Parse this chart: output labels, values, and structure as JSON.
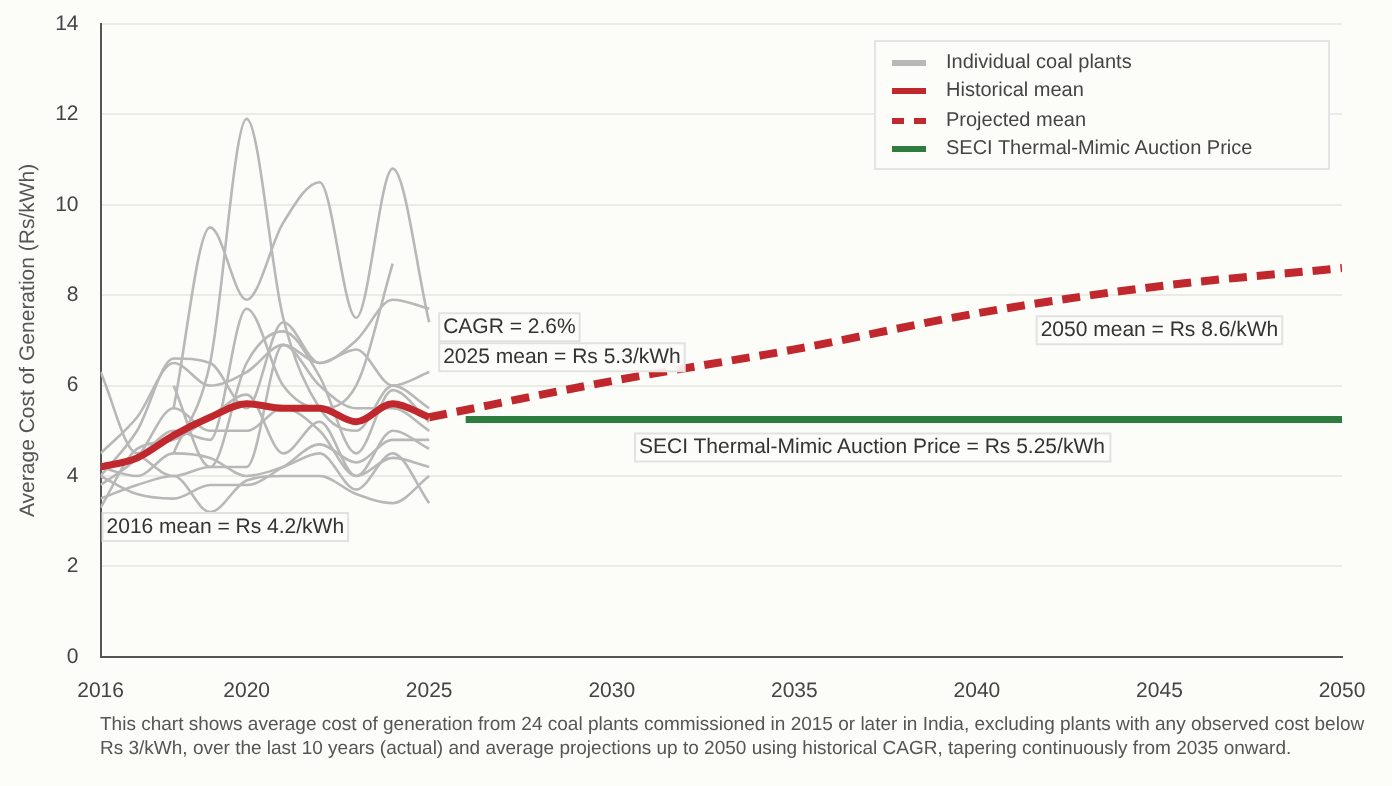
{
  "chart_data": {
    "type": "line",
    "ylabel": "Average Cost of Generation (Rs/kWh)",
    "x": [
      2016,
      2017,
      2018,
      2019,
      2020,
      2021,
      2022,
      2023,
      2024,
      2025
    ],
    "xlim": [
      2016,
      2050
    ],
    "xticks": [
      2016,
      2020,
      2025,
      2030,
      2035,
      2040,
      2045,
      2050
    ],
    "ylim": [
      0,
      14
    ],
    "yticks": [
      0,
      2,
      4,
      6,
      8,
      10,
      12,
      14
    ],
    "grid": "y",
    "legend": "top right",
    "marker": "none",
    "series": [
      {
        "name": "Individual coal plants",
        "color": "#b8b8b8",
        "values": [
          null,
          null,
          5.5,
          9.5,
          7.9,
          9.6,
          10.5,
          7.5,
          10.8,
          7.4
        ]
      },
      {
        "color": "#b8b8b8",
        "values": [
          null,
          null,
          4.5,
          6.5,
          11.9,
          7.5,
          5.5,
          5.0,
          6.0,
          5.5
        ]
      },
      {
        "color": "#b8b8b8",
        "values": [
          6.3,
          4.5,
          5.0,
          4.8,
          7.7,
          6.0,
          5.5,
          6.0,
          8.7,
          null
        ]
      },
      {
        "color": "#b8b8b8",
        "values": [
          4.0,
          5.0,
          6.6,
          6.5,
          5.5,
          7.4,
          6.5,
          7.0,
          7.9,
          7.7
        ]
      },
      {
        "color": "#b8b8b8",
        "values": [
          3.5,
          3.8,
          4.0,
          3.2,
          3.9,
          4.0,
          4.0,
          3.6,
          3.4,
          4.0
        ]
      },
      {
        "color": "#b8b8b8",
        "values": [
          4.2,
          4.0,
          4.5,
          4.4,
          4.0,
          4.2,
          4.5,
          3.7,
          4.5,
          3.4
        ]
      },
      {
        "color": "#b8b8b8",
        "values": [
          3.8,
          4.4,
          5.5,
          5.0,
          5.0,
          5.5,
          5.0,
          4.0,
          5.0,
          4.6
        ]
      },
      {
        "color": "#b8b8b8",
        "values": [
          4.5,
          5.3,
          6.5,
          6.0,
          6.3,
          6.9,
          6.5,
          6.8,
          6.0,
          6.3
        ]
      },
      {
        "color": "#b8b8b8",
        "values": [
          null,
          4.5,
          4.0,
          4.2,
          4.2,
          6.9,
          6.0,
          5.5,
          5.5,
          5.0
        ]
      },
      {
        "color": "#b8b8b8",
        "values": [
          4.0,
          3.6,
          3.5,
          3.8,
          3.8,
          4.2,
          4.7,
          4.3,
          4.8,
          4.8
        ]
      },
      {
        "color": "#b8b8b8",
        "values": [
          null,
          null,
          6.0,
          4.2,
          6.5,
          7.2,
          6.2,
          4.5,
          5.9,
          5.2
        ]
      },
      {
        "color": "#b8b8b8",
        "values": [
          3.3,
          4.6,
          4.8,
          5.3,
          5.8,
          4.5,
          5.2,
          4.0,
          4.4,
          4.2
        ]
      },
      {
        "name": "Historical mean",
        "color": "#c0282d",
        "values": [
          4.2,
          4.4,
          4.9,
          5.3,
          5.6,
          5.5,
          5.5,
          5.2,
          5.6,
          5.3
        ]
      },
      {
        "name": "Projected mean",
        "color": "#c0282d",
        "line_style": "dashed",
        "x": [
          2025,
          2030,
          2035,
          2040,
          2045,
          2050
        ],
        "values": [
          5.3,
          6.1,
          6.8,
          7.6,
          8.2,
          8.6
        ]
      },
      {
        "name": "SECI Thermal-Mimic Auction Price",
        "color": "#2e7d3e",
        "x": [
          2026,
          2050
        ],
        "values": [
          5.25,
          5.25
        ]
      }
    ],
    "annotations": [
      {
        "text": "2016 mean = Rs 4.2/kWh",
        "x": 2016,
        "y": 4.2
      },
      {
        "text": "2025 mean = Rs 5.3/kWh",
        "x": 2025,
        "y": 5.3
      },
      "CAGR = 2.6%",
      "2050 mean = Rs 8.6/kWh",
      "SECI Thermal-Mimic Auction Price = Rs 5.25/kWh",
      "This chart shows average cost of generation from 24 coal plants commissioned in 2015 or later in India, excluding plants with any observed cost below Rs 3/kWh, over the last 10 years (actual) and average projections up to 2050 using historical CAGR, tapering continuously from 2035 onward."
    ]
  }
}
